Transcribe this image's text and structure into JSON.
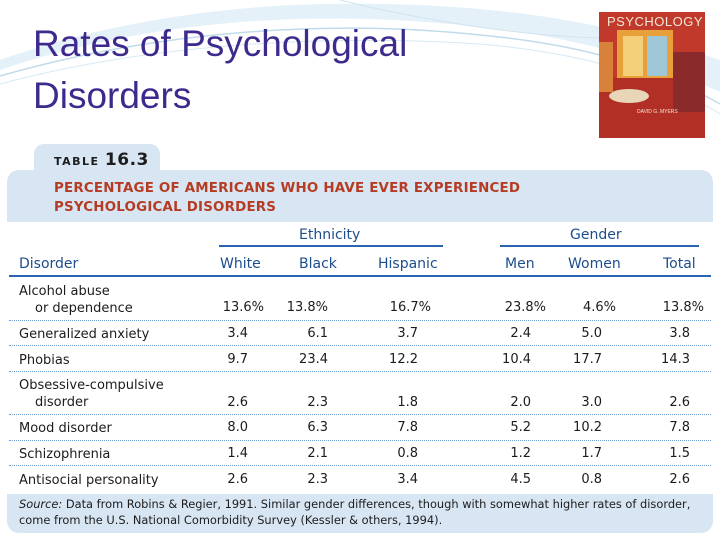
{
  "slide": {
    "title": "Rates of Psychological Disorders"
  },
  "book_cover": {
    "title": "PSYCHOLOGY",
    "author": "DAVID G. MYERS"
  },
  "table": {
    "label": "TABLE",
    "number": "16.3",
    "heading_line1": "PERCENTAGE OF AMERICANS WHO HAVE EVER EXPERIENCED",
    "heading_line2": "PSYCHOLOGICAL DISORDERS",
    "group_ethnicity": "Ethnicity",
    "group_gender": "Gender",
    "col_disorder": "Disorder",
    "col_white": "White",
    "col_black": "Black",
    "col_hispanic": "Hispanic",
    "col_men": "Men",
    "col_women": "Women",
    "col_total": "Total",
    "rows": [
      {
        "name1": "Alcohol abuse",
        "name2": "or dependence",
        "white": "13.6%",
        "black": "13.8%",
        "hispanic": "16.7%",
        "men": "23.8%",
        "women": "4.6%",
        "total": "13.8%"
      },
      {
        "name1": "Generalized anxiety",
        "name2": "",
        "white": "3.4",
        "black": "6.1",
        "hispanic": "3.7",
        "men": "2.4",
        "women": "5.0",
        "total": "3.8"
      },
      {
        "name1": "Phobias",
        "name2": "",
        "white": "9.7",
        "black": "23.4",
        "hispanic": "12.2",
        "men": "10.4",
        "women": "17.7",
        "total": "14.3"
      },
      {
        "name1": "Obsessive-compulsive",
        "name2": "disorder",
        "white": "2.6",
        "black": "2.3",
        "hispanic": "1.8",
        "men": "2.0",
        "women": "3.0",
        "total": "2.6"
      },
      {
        "name1": "Mood disorder",
        "name2": "",
        "white": "8.0",
        "black": "6.3",
        "hispanic": "7.8",
        "men": "5.2",
        "women": "10.2",
        "total": "7.8"
      },
      {
        "name1": "Schizophrenia",
        "name2": "",
        "white": "1.4",
        "black": "2.1",
        "hispanic": "0.8",
        "men": "1.2",
        "women": "1.7",
        "total": "1.5"
      },
      {
        "name1": "Antisocial personality",
        "name2": "",
        "white": "2.6",
        "black": "2.3",
        "hispanic": "3.4",
        "men": "4.5",
        "women": "0.8",
        "total": "2.6"
      }
    ],
    "source_label": "Source:",
    "source_line1": " Data from Robins & Regier, 1991. Similar gender differences, though with somewhat higher rates of disorder,",
    "source_line2": "come from the U.S. National Comorbidity Survey (Kessler & others, 1994)."
  }
}
